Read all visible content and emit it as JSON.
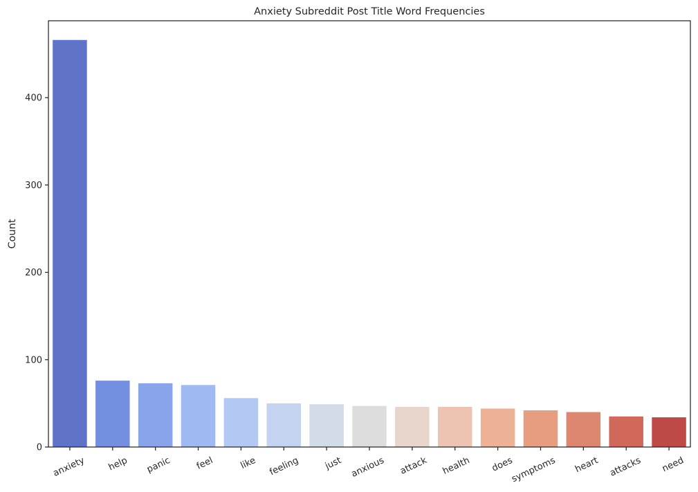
{
  "chart_data": {
    "type": "bar",
    "title": "Anxiety Subreddit Post Title Word Frequencies",
    "xlabel": "",
    "ylabel": "Count",
    "ylim": [
      0,
      488
    ],
    "yticks": [
      0,
      100,
      200,
      300,
      400
    ],
    "grid": false,
    "categories": [
      "anxiety",
      "help",
      "panic",
      "feel",
      "like",
      "feeling",
      "just",
      "anxious",
      "attack",
      "health",
      "does",
      "symptoms",
      "heart",
      "attacks",
      "need"
    ],
    "values": [
      466,
      76,
      73,
      71,
      56,
      50,
      49,
      47,
      46,
      46,
      44,
      42,
      40,
      35,
      34
    ],
    "colors": [
      "#5f74c9",
      "#758fe0",
      "#89a4ea",
      "#9fb9f2",
      "#b3c9f4",
      "#c3d3f0",
      "#d2dbe8",
      "#dddddd",
      "#e8d6cc",
      "#edc4b2",
      "#edb195",
      "#e69d80",
      "#dd8670",
      "#d06959",
      "#bd4a47"
    ],
    "palette": "coolwarm"
  }
}
